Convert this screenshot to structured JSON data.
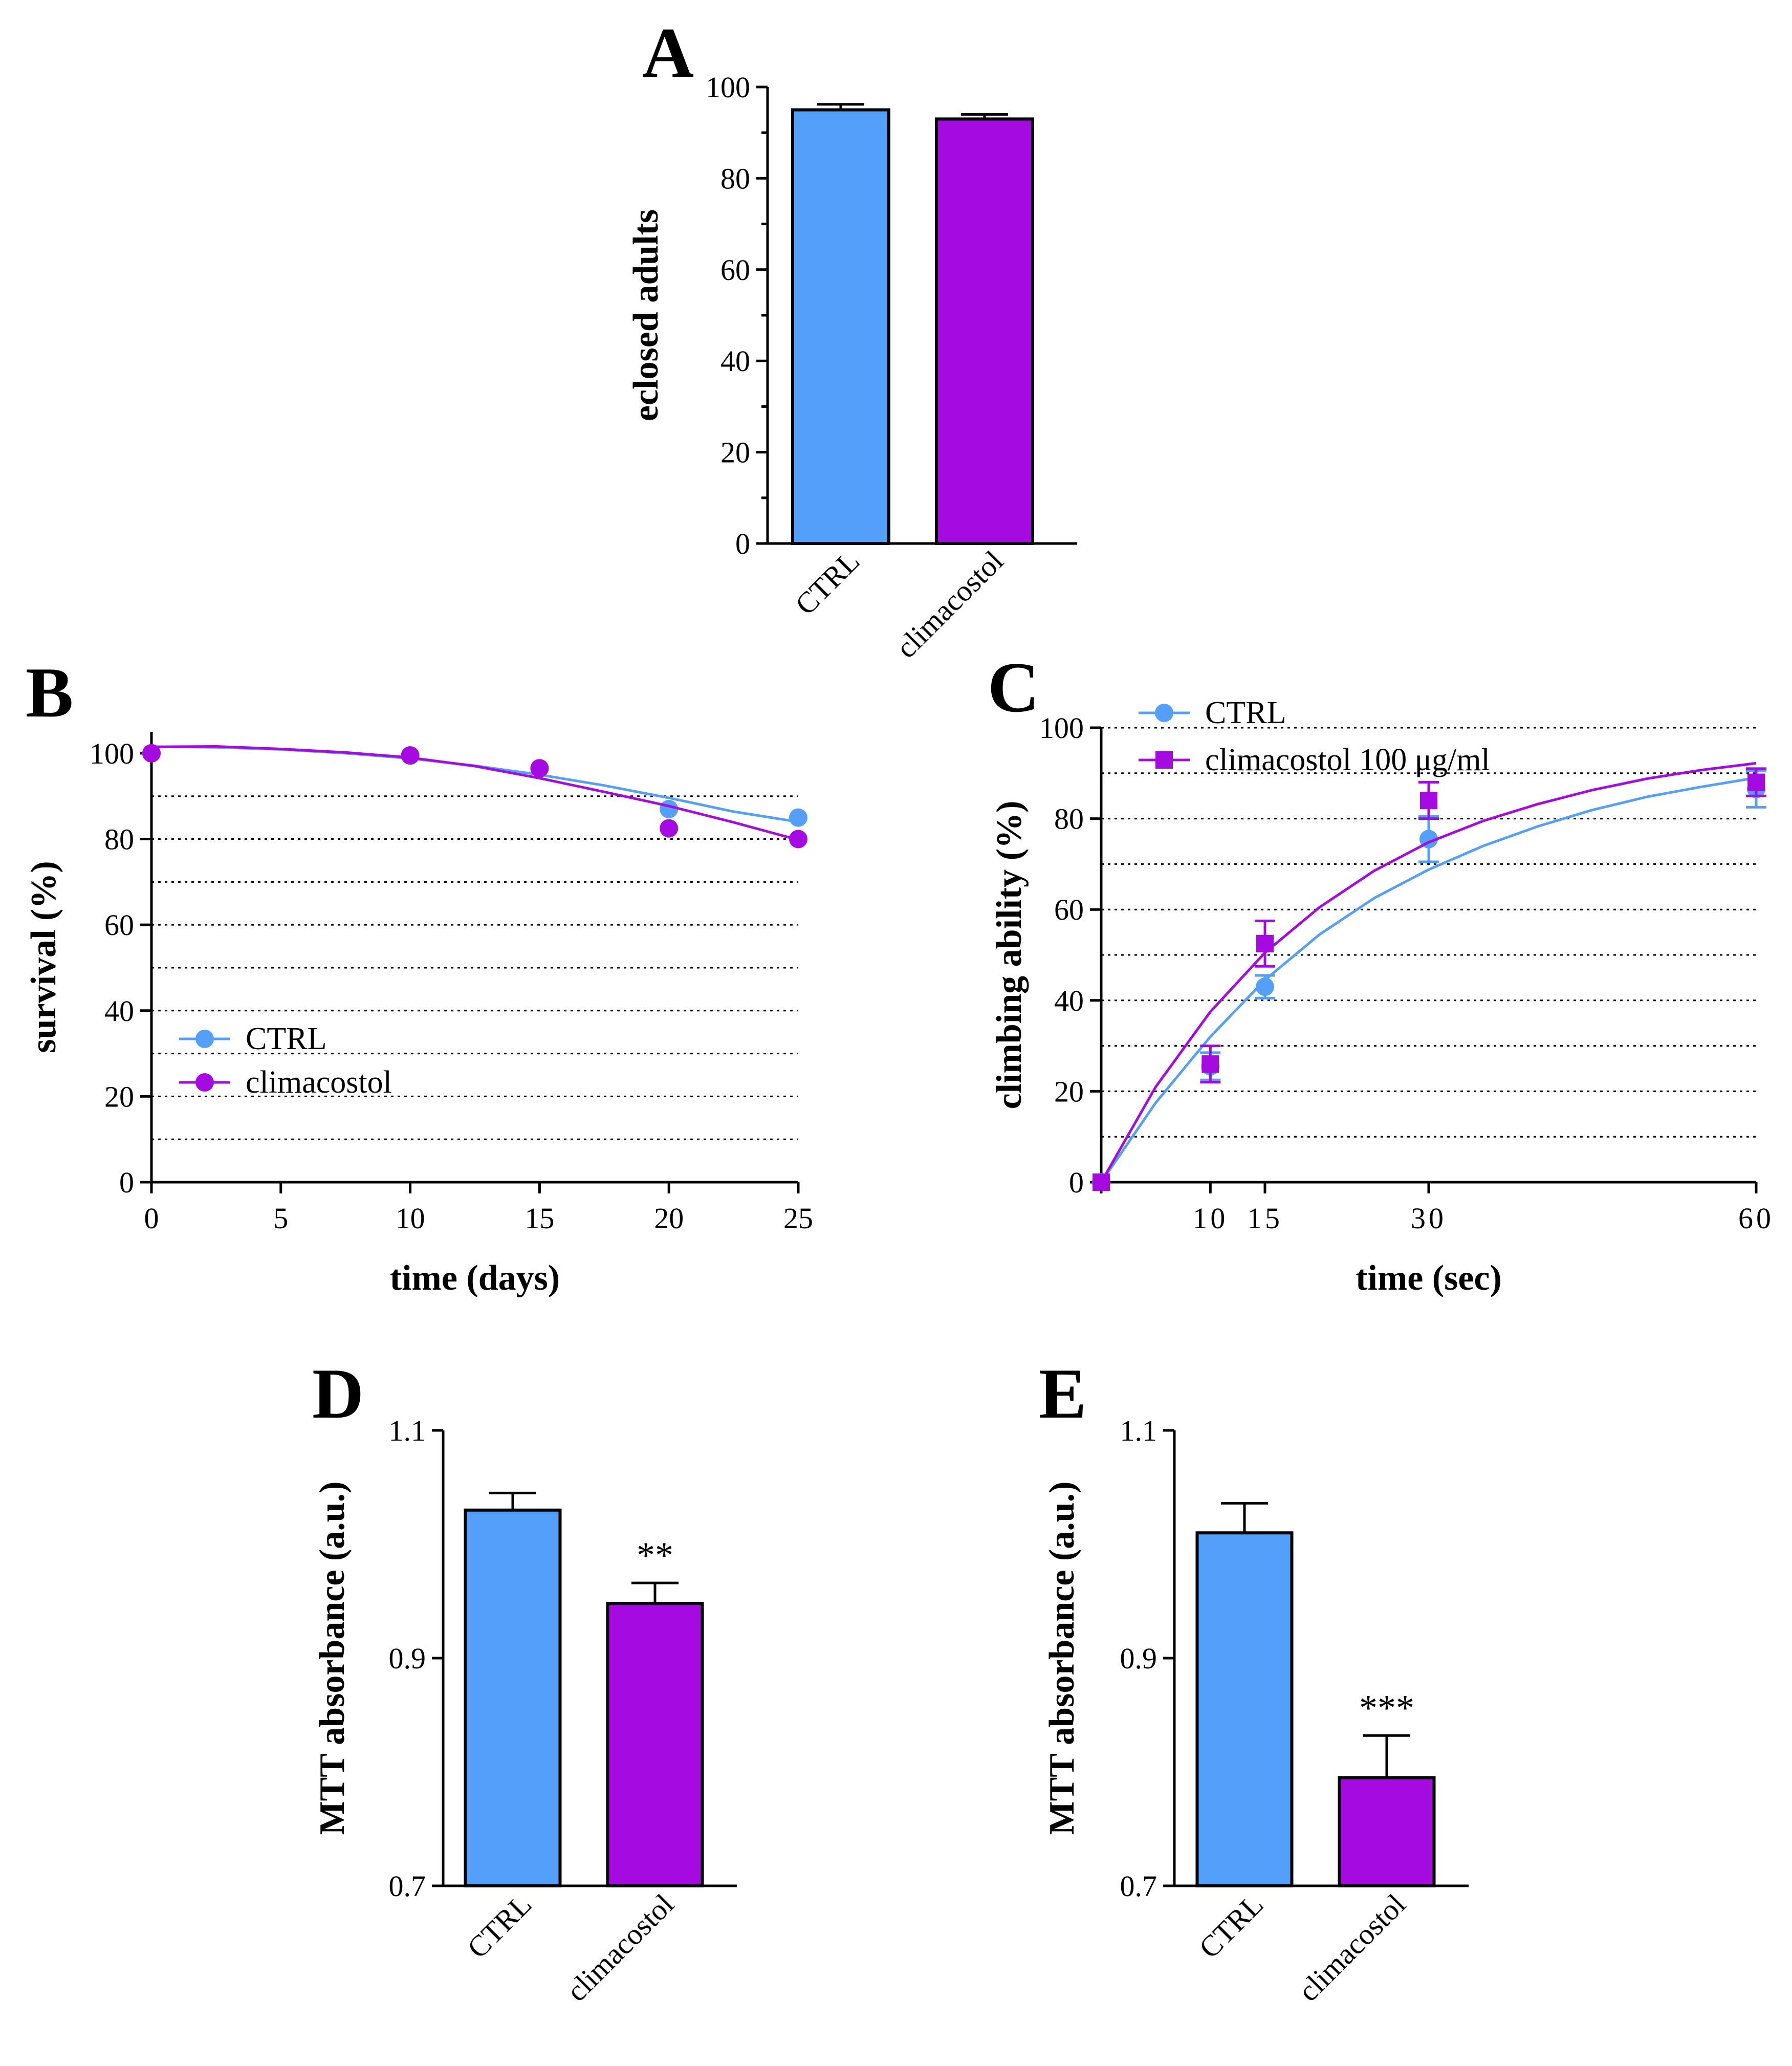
{
  "colors": {
    "ctrl": "#539FFA",
    "climacostol": "#A50BE0"
  },
  "chart_data": [
    {
      "id": "A",
      "panel_label": "A",
      "type": "bar",
      "categories": [
        "CTRL",
        "climacostol"
      ],
      "values": [
        95,
        93
      ],
      "errors": [
        1.2,
        1.0
      ],
      "ylabel": "eclosed adults",
      "xlabel": "",
      "ylim": [
        0,
        100
      ],
      "yticks": [
        "0",
        "20",
        "40",
        "60",
        "80",
        "100"
      ],
      "ytick_values": [
        0,
        20,
        40,
        60,
        80,
        100
      ],
      "minor_ticks": true,
      "significance": [
        "",
        ""
      ]
    },
    {
      "id": "B",
      "panel_label": "B",
      "type": "scatter",
      "xlabel": "time (days)",
      "ylabel": "survival (%)",
      "xlim": [
        0,
        25
      ],
      "ylim": [
        0,
        105
      ],
      "xticks": [
        "0",
        "5",
        "10",
        "15",
        "20",
        "25"
      ],
      "xtick_values": [
        0,
        5,
        10,
        15,
        20,
        25
      ],
      "yticks": [
        "0",
        "20",
        "40",
        "60",
        "80",
        "100"
      ],
      "ytick_values": [
        0,
        20,
        40,
        60,
        80,
        100
      ],
      "gridlines_y": [
        10,
        20,
        30,
        40,
        50,
        60,
        70,
        80,
        90
      ],
      "legend_position": "bottom-left",
      "series": [
        {
          "name": "CTRL",
          "marker": "circle",
          "x": [
            0,
            10,
            15,
            20,
            25
          ],
          "y": [
            100,
            99.5,
            96.5,
            87,
            85
          ],
          "fit_x": [
            0,
            2.5,
            5,
            7.5,
            10,
            12.5,
            15,
            17.5,
            20,
            22.5,
            25
          ],
          "fit_y": [
            101.5,
            101.4,
            100.9,
            100,
            98.8,
            97.1,
            95,
            92.5,
            89.6,
            86.4,
            84
          ]
        },
        {
          "name": "climacostol",
          "marker": "circle",
          "x": [
            0,
            10,
            15,
            20,
            25
          ],
          "y": [
            100,
            99.5,
            96.5,
            82.5,
            80
          ],
          "fit_x": [
            0,
            2.5,
            5,
            7.5,
            10,
            12.5,
            15,
            17.5,
            20,
            22.5,
            25
          ],
          "fit_y": [
            101.5,
            101.6,
            101,
            100.2,
            99,
            97,
            94.2,
            91,
            87.7,
            83.9,
            79.8
          ]
        }
      ]
    },
    {
      "id": "C",
      "panel_label": "C",
      "type": "scatter",
      "xlabel": "time (sec)",
      "ylabel": "climbing ability (%)",
      "xlim": [
        0,
        60
      ],
      "ylim": [
        0,
        100
      ],
      "xticks": [
        "10",
        "15",
        "30",
        "60"
      ],
      "xtick_values": [
        10,
        15,
        30,
        60
      ],
      "yticks": [
        "0",
        "20",
        "40",
        "60",
        "80",
        "100"
      ],
      "ytick_values": [
        0,
        20,
        40,
        60,
        80,
        100
      ],
      "gridlines_y": [
        10,
        20,
        30,
        40,
        50,
        60,
        70,
        80,
        90,
        100
      ],
      "legend_position": "top-left",
      "series": [
        {
          "name": "CTRL",
          "marker": "circle",
          "x": [
            0,
            10,
            15,
            30,
            60
          ],
          "y": [
            0,
            25.5,
            43,
            75.5,
            86.5
          ],
          "err": [
            0,
            3,
            2.5,
            5,
            4
          ],
          "fit_x": [
            0,
            5,
            10,
            15,
            20,
            25,
            30,
            35,
            40,
            45,
            50,
            55,
            60
          ],
          "fit_y": [
            0,
            17.5,
            32,
            44.5,
            54.5,
            62.5,
            68.8,
            74,
            78.3,
            81.9,
            84.8,
            87,
            89
          ]
        },
        {
          "name": "climacostol 100 μg/ml",
          "marker": "square",
          "x": [
            0,
            10,
            15,
            30,
            60
          ],
          "y": [
            0,
            26,
            52.5,
            84,
            88
          ],
          "err": [
            0,
            4,
            5,
            4,
            3
          ],
          "fit_x": [
            0,
            5,
            10,
            15,
            20,
            25,
            30,
            35,
            40,
            45,
            50,
            55,
            60
          ],
          "fit_y": [
            0,
            21,
            37.5,
            50.5,
            60.5,
            68.5,
            74.8,
            79.5,
            83.2,
            86.3,
            88.8,
            90.7,
            92.2
          ]
        }
      ]
    },
    {
      "id": "D",
      "panel_label": "D",
      "type": "bar",
      "categories": [
        "CTRL",
        "climacostol"
      ],
      "values": [
        1.03,
        0.948
      ],
      "errors": [
        0.015,
        0.018
      ],
      "ylabel": "MTT absorbance (a.u.)",
      "xlabel": "",
      "ylim": [
        0.7,
        1.1
      ],
      "yticks": [
        "0.7",
        "0.9",
        "1.1"
      ],
      "ytick_values": [
        0.7,
        0.9,
        1.1
      ],
      "minor_ticks": false,
      "significance": [
        "",
        "**"
      ]
    },
    {
      "id": "E",
      "panel_label": "E",
      "type": "bar",
      "categories": [
        "CTRL",
        "climacostol"
      ],
      "values": [
        1.01,
        0.795
      ],
      "errors": [
        0.026,
        0.037
      ],
      "ylabel": "MTT absorbance (a.u.)",
      "xlabel": "",
      "ylim": [
        0.7,
        1.1
      ],
      "yticks": [
        "0.7",
        "0.9",
        "1.1"
      ],
      "ytick_values": [
        0.7,
        0.9,
        1.1
      ],
      "minor_ticks": false,
      "significance": [
        "",
        "***"
      ]
    }
  ]
}
